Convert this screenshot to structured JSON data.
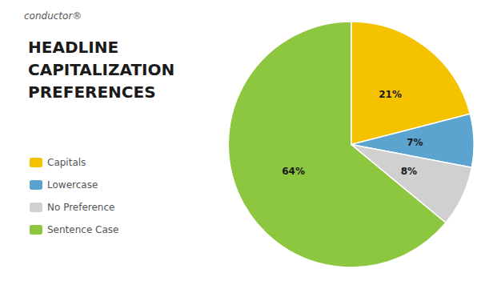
{
  "chart_data": {
    "type": "pie",
    "title": "HEADLINE\nCAPITALIZATION\nPREFERENCES",
    "annotations": [
      "conductor®"
    ],
    "categories": [
      "Capitals",
      "Lowercase",
      "No Preference",
      "Sentence Case"
    ],
    "values": [
      21,
      7,
      8,
      64
    ],
    "value_labels": [
      "21%",
      "7%",
      "8%",
      "64%"
    ],
    "colors": [
      "#F5C200",
      "#5BA4CF",
      "#D0D0D0",
      "#8DC63F"
    ],
    "data_labels": true,
    "legend": "left"
  }
}
